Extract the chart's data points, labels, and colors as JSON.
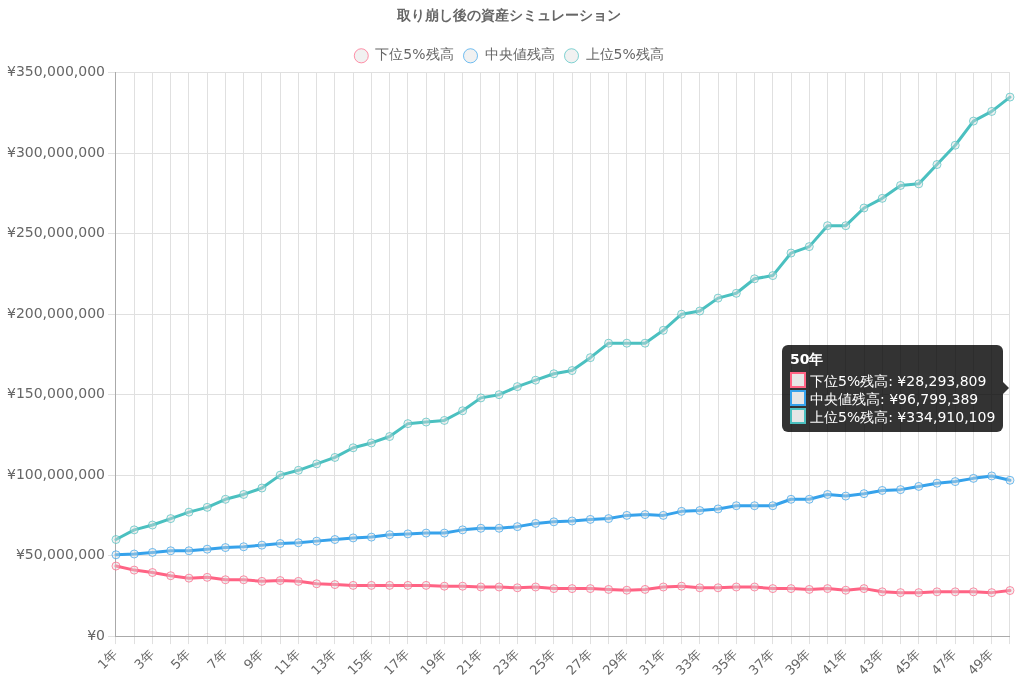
{
  "chart_data": {
    "type": "line",
    "title": "取り崩し後の資産シミュレーション",
    "categories": [
      "1年",
      null,
      "3年",
      null,
      "5年",
      null,
      "7年",
      null,
      "9年",
      null,
      "11年",
      null,
      "13年",
      null,
      "15年",
      null,
      "17年",
      null,
      "19年",
      null,
      "21年",
      null,
      "23年",
      null,
      "25年",
      null,
      "27年",
      null,
      "29年",
      null,
      "31年",
      null,
      "33年",
      null,
      "35年",
      null,
      "37年",
      null,
      "39年",
      null,
      "41年",
      null,
      "43年",
      null,
      "45年",
      null,
      "47年",
      null,
      "49年",
      null
    ],
    "series": [
      {
        "name": "下位5%残高",
        "color": "#ff6384",
        "values": [
          43500000,
          41000000,
          39500000,
          37500000,
          36000000,
          36500000,
          35000000,
          35000000,
          34000000,
          34500000,
          34000000,
          32500000,
          32000000,
          31500000,
          31500000,
          31500000,
          31500000,
          31500000,
          31000000,
          31000000,
          30500000,
          30500000,
          30000000,
          30500000,
          29500000,
          29500000,
          29500000,
          29000000,
          28500000,
          29000000,
          30500000,
          31000000,
          30000000,
          30000000,
          30500000,
          30500000,
          29500000,
          29500000,
          29000000,
          29500000,
          28500000,
          29500000,
          27500000,
          27000000,
          27000000,
          27500000,
          27500000,
          27500000,
          27000000,
          28293809
        ]
      },
      {
        "name": "中央値残高",
        "color": "#36a2eb",
        "values": [
          50500000,
          51000000,
          52000000,
          53000000,
          53000000,
          54000000,
          55000000,
          55500000,
          56500000,
          57500000,
          58000000,
          59000000,
          60000000,
          61000000,
          61500000,
          63000000,
          63500000,
          64000000,
          64000000,
          66000000,
          67000000,
          67000000,
          68000000,
          70000000,
          71000000,
          71500000,
          72500000,
          73000000,
          75000000,
          75500000,
          75000000,
          77500000,
          78000000,
          79000000,
          81000000,
          81000000,
          81000000,
          85000000,
          85000000,
          88000000,
          87000000,
          88500000,
          90500000,
          91000000,
          93000000,
          95000000,
          96000000,
          98000000,
          99500000,
          96799389
        ]
      },
      {
        "name": "上位5%残高",
        "color": "#4bc0c0",
        "values": [
          60000000,
          66000000,
          69000000,
          73000000,
          77000000,
          80000000,
          85000000,
          88000000,
          92000000,
          100000000,
          103000000,
          107000000,
          111000000,
          117000000,
          120000000,
          124000000,
          132000000,
          133000000,
          134000000,
          140000000,
          148000000,
          150000000,
          155000000,
          159000000,
          163000000,
          165000000,
          173000000,
          182000000,
          182000000,
          182000000,
          190000000,
          200000000,
          202000000,
          210000000,
          213000000,
          222000000,
          224000000,
          238000000,
          242000000,
          255000000,
          255000000,
          266000000,
          272000000,
          280000000,
          281000000,
          293000000,
          305000000,
          320000000,
          326000000,
          334910109
        ]
      }
    ],
    "ylim": [
      0,
      350000000
    ],
    "yticks": [
      {
        "value": 0,
        "label": "¥0"
      },
      {
        "value": 50000000,
        "label": "¥50,000,000"
      },
      {
        "value": 100000000,
        "label": "¥100,000,000"
      },
      {
        "value": 150000000,
        "label": "¥150,000,000"
      },
      {
        "value": 200000000,
        "label": "¥200,000,000"
      },
      {
        "value": 250000000,
        "label": "¥250,000,000"
      },
      {
        "value": 300000000,
        "label": "¥300,000,000"
      },
      {
        "value": 350000000,
        "label": "¥350,000,000"
      }
    ],
    "annotations": [
      "50年",
      "下位5%残高: ¥28,293,809",
      "中央値残高: ¥96,799,389",
      "上位5%残高: ¥334,910,109"
    ],
    "grid": true,
    "legend": "top",
    "marker": "circle",
    "line_style": "solid"
  }
}
